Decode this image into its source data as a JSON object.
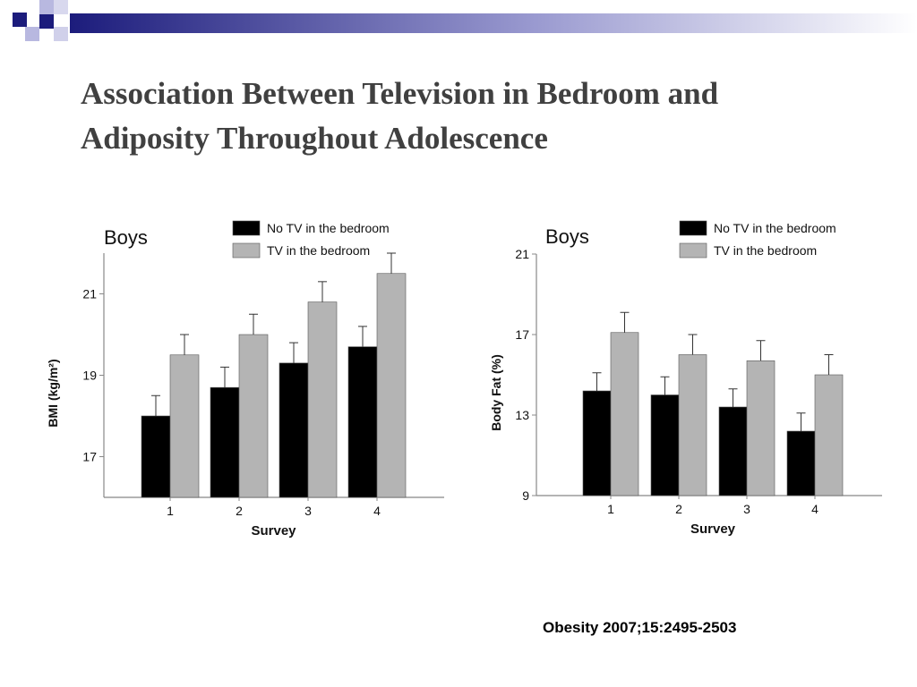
{
  "slide": {
    "title_line1": "Association Between Television in Bedroom and",
    "title_line2": "Adiposity Throughout Adolescence",
    "citation": "Obesity 2007;15:2495-2503"
  },
  "colors": {
    "no_tv": "#000000",
    "tv": "#b4b4b4",
    "axis": "#888888",
    "deco_dark": "#1c1c7c",
    "deco_light": "#b8b8e0"
  },
  "chart_data": [
    {
      "type": "bar",
      "title": "Boys",
      "xlabel": "Survey",
      "ylabel": "BMI (kg/m²)",
      "categories": [
        "1",
        "2",
        "3",
        "4"
      ],
      "yticks": [
        "17",
        "19",
        "21"
      ],
      "ylim": [
        16.0,
        22.0
      ],
      "legend_position": "top",
      "series": [
        {
          "name": "No TV in the bedroom",
          "values": [
            18.0,
            18.7,
            19.3,
            19.7
          ],
          "errors": [
            0.5,
            0.5,
            0.5,
            0.5
          ]
        },
        {
          "name": "TV in the bedroom",
          "values": [
            19.5,
            20.0,
            20.8,
            21.5
          ],
          "errors": [
            0.5,
            0.5,
            0.5,
            0.5
          ]
        }
      ]
    },
    {
      "type": "bar",
      "title": "Boys",
      "xlabel": "Survey",
      "ylabel": "Body Fat (%)",
      "categories": [
        "1",
        "2",
        "3",
        "4"
      ],
      "yticks": [
        "9",
        "13",
        "17",
        "21"
      ],
      "ylim": [
        9,
        21
      ],
      "legend_position": "top",
      "series": [
        {
          "name": "No TV in the bedroom",
          "values": [
            14.2,
            14.0,
            13.4,
            12.2
          ],
          "errors": [
            0.9,
            0.9,
            0.9,
            0.9
          ]
        },
        {
          "name": "TV in the bedroom",
          "values": [
            17.1,
            16.0,
            15.7,
            15.0
          ],
          "errors": [
            1.0,
            1.0,
            1.0,
            1.0
          ]
        }
      ]
    }
  ]
}
